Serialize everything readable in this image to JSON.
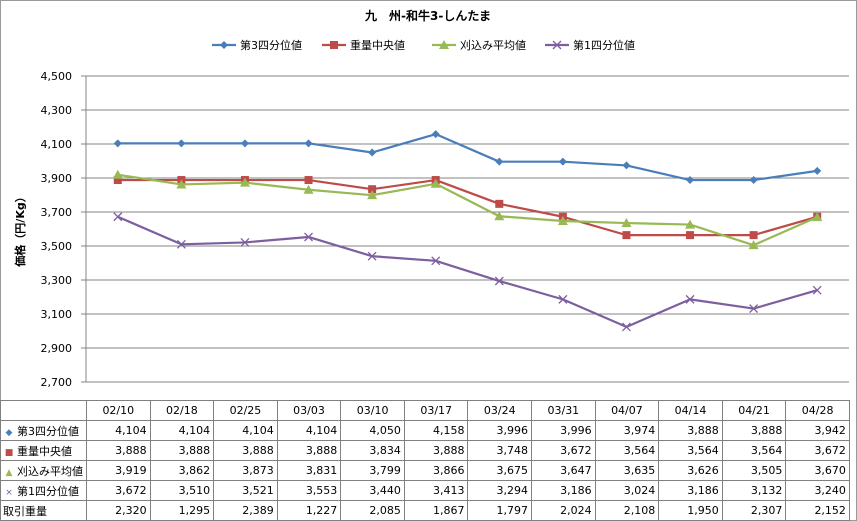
{
  "chart_data": {
    "type": "line",
    "title": "九　州-和牛3-しんたま",
    "ylabel": "価格（円/Kg）",
    "ylim": [
      2700,
      4500
    ],
    "yticks": [
      2700,
      2900,
      3100,
      3300,
      3500,
      3700,
      3900,
      4100,
      4300,
      4500
    ],
    "ytick_labels": [
      "2,700",
      "2,900",
      "3,100",
      "3,300",
      "3,500",
      "3,700",
      "3,900",
      "4,100",
      "4,300",
      "4,500"
    ],
    "grid": true,
    "legend": "top",
    "categories": [
      "02/10",
      "02/18",
      "02/25",
      "03/03",
      "03/10",
      "03/17",
      "03/24",
      "03/31",
      "04/07",
      "04/14",
      "04/21",
      "04/28"
    ],
    "series": [
      {
        "name": "第3四分位値",
        "color": "#4a7ebb",
        "marker": "diamond",
        "values": [
          4104,
          4104,
          4104,
          4104,
          4050,
          4158,
          3996,
          3996,
          3974,
          3888,
          3888,
          3942
        ],
        "labels": [
          "4,104",
          "4,104",
          "4,104",
          "4,104",
          "4,050",
          "4,158",
          "3,996",
          "3,996",
          "3,974",
          "3,888",
          "3,888",
          "3,942"
        ]
      },
      {
        "name": "重量中央値",
        "color": "#be4b48",
        "marker": "square",
        "values": [
          3888,
          3888,
          3888,
          3888,
          3834,
          3888,
          3748,
          3672,
          3564,
          3564,
          3564,
          3672
        ],
        "labels": [
          "3,888",
          "3,888",
          "3,888",
          "3,888",
          "3,834",
          "3,888",
          "3,748",
          "3,672",
          "3,564",
          "3,564",
          "3,564",
          "3,672"
        ]
      },
      {
        "name": "刈込み平均値",
        "color": "#98b954",
        "marker": "triangle",
        "values": [
          3919,
          3862,
          3873,
          3831,
          3799,
          3866,
          3675,
          3647,
          3635,
          3626,
          3505,
          3670
        ],
        "labels": [
          "3,919",
          "3,862",
          "3,873",
          "3,831",
          "3,799",
          "3,866",
          "3,675",
          "3,647",
          "3,635",
          "3,626",
          "3,505",
          "3,670"
        ]
      },
      {
        "name": "第1四分位値",
        "color": "#7d5fa0",
        "marker": "x",
        "values": [
          3672,
          3510,
          3521,
          3553,
          3440,
          3413,
          3294,
          3186,
          3024,
          3186,
          3132,
          3240
        ],
        "labels": [
          "3,672",
          "3,510",
          "3,521",
          "3,553",
          "3,440",
          "3,413",
          "3,294",
          "3,186",
          "3,024",
          "3,186",
          "3,132",
          "3,240"
        ]
      }
    ],
    "table_extra_row": {
      "name": "取引重量",
      "values": [
        2320,
        1295,
        2389,
        1227,
        2085,
        1867,
        1797,
        2024,
        2108,
        1950,
        2307,
        2152
      ],
      "labels": [
        "2,320",
        "1,295",
        "2,389",
        "1,227",
        "2,085",
        "1,867",
        "1,797",
        "2,024",
        "2,108",
        "1,950",
        "2,307",
        "2,152"
      ]
    }
  }
}
